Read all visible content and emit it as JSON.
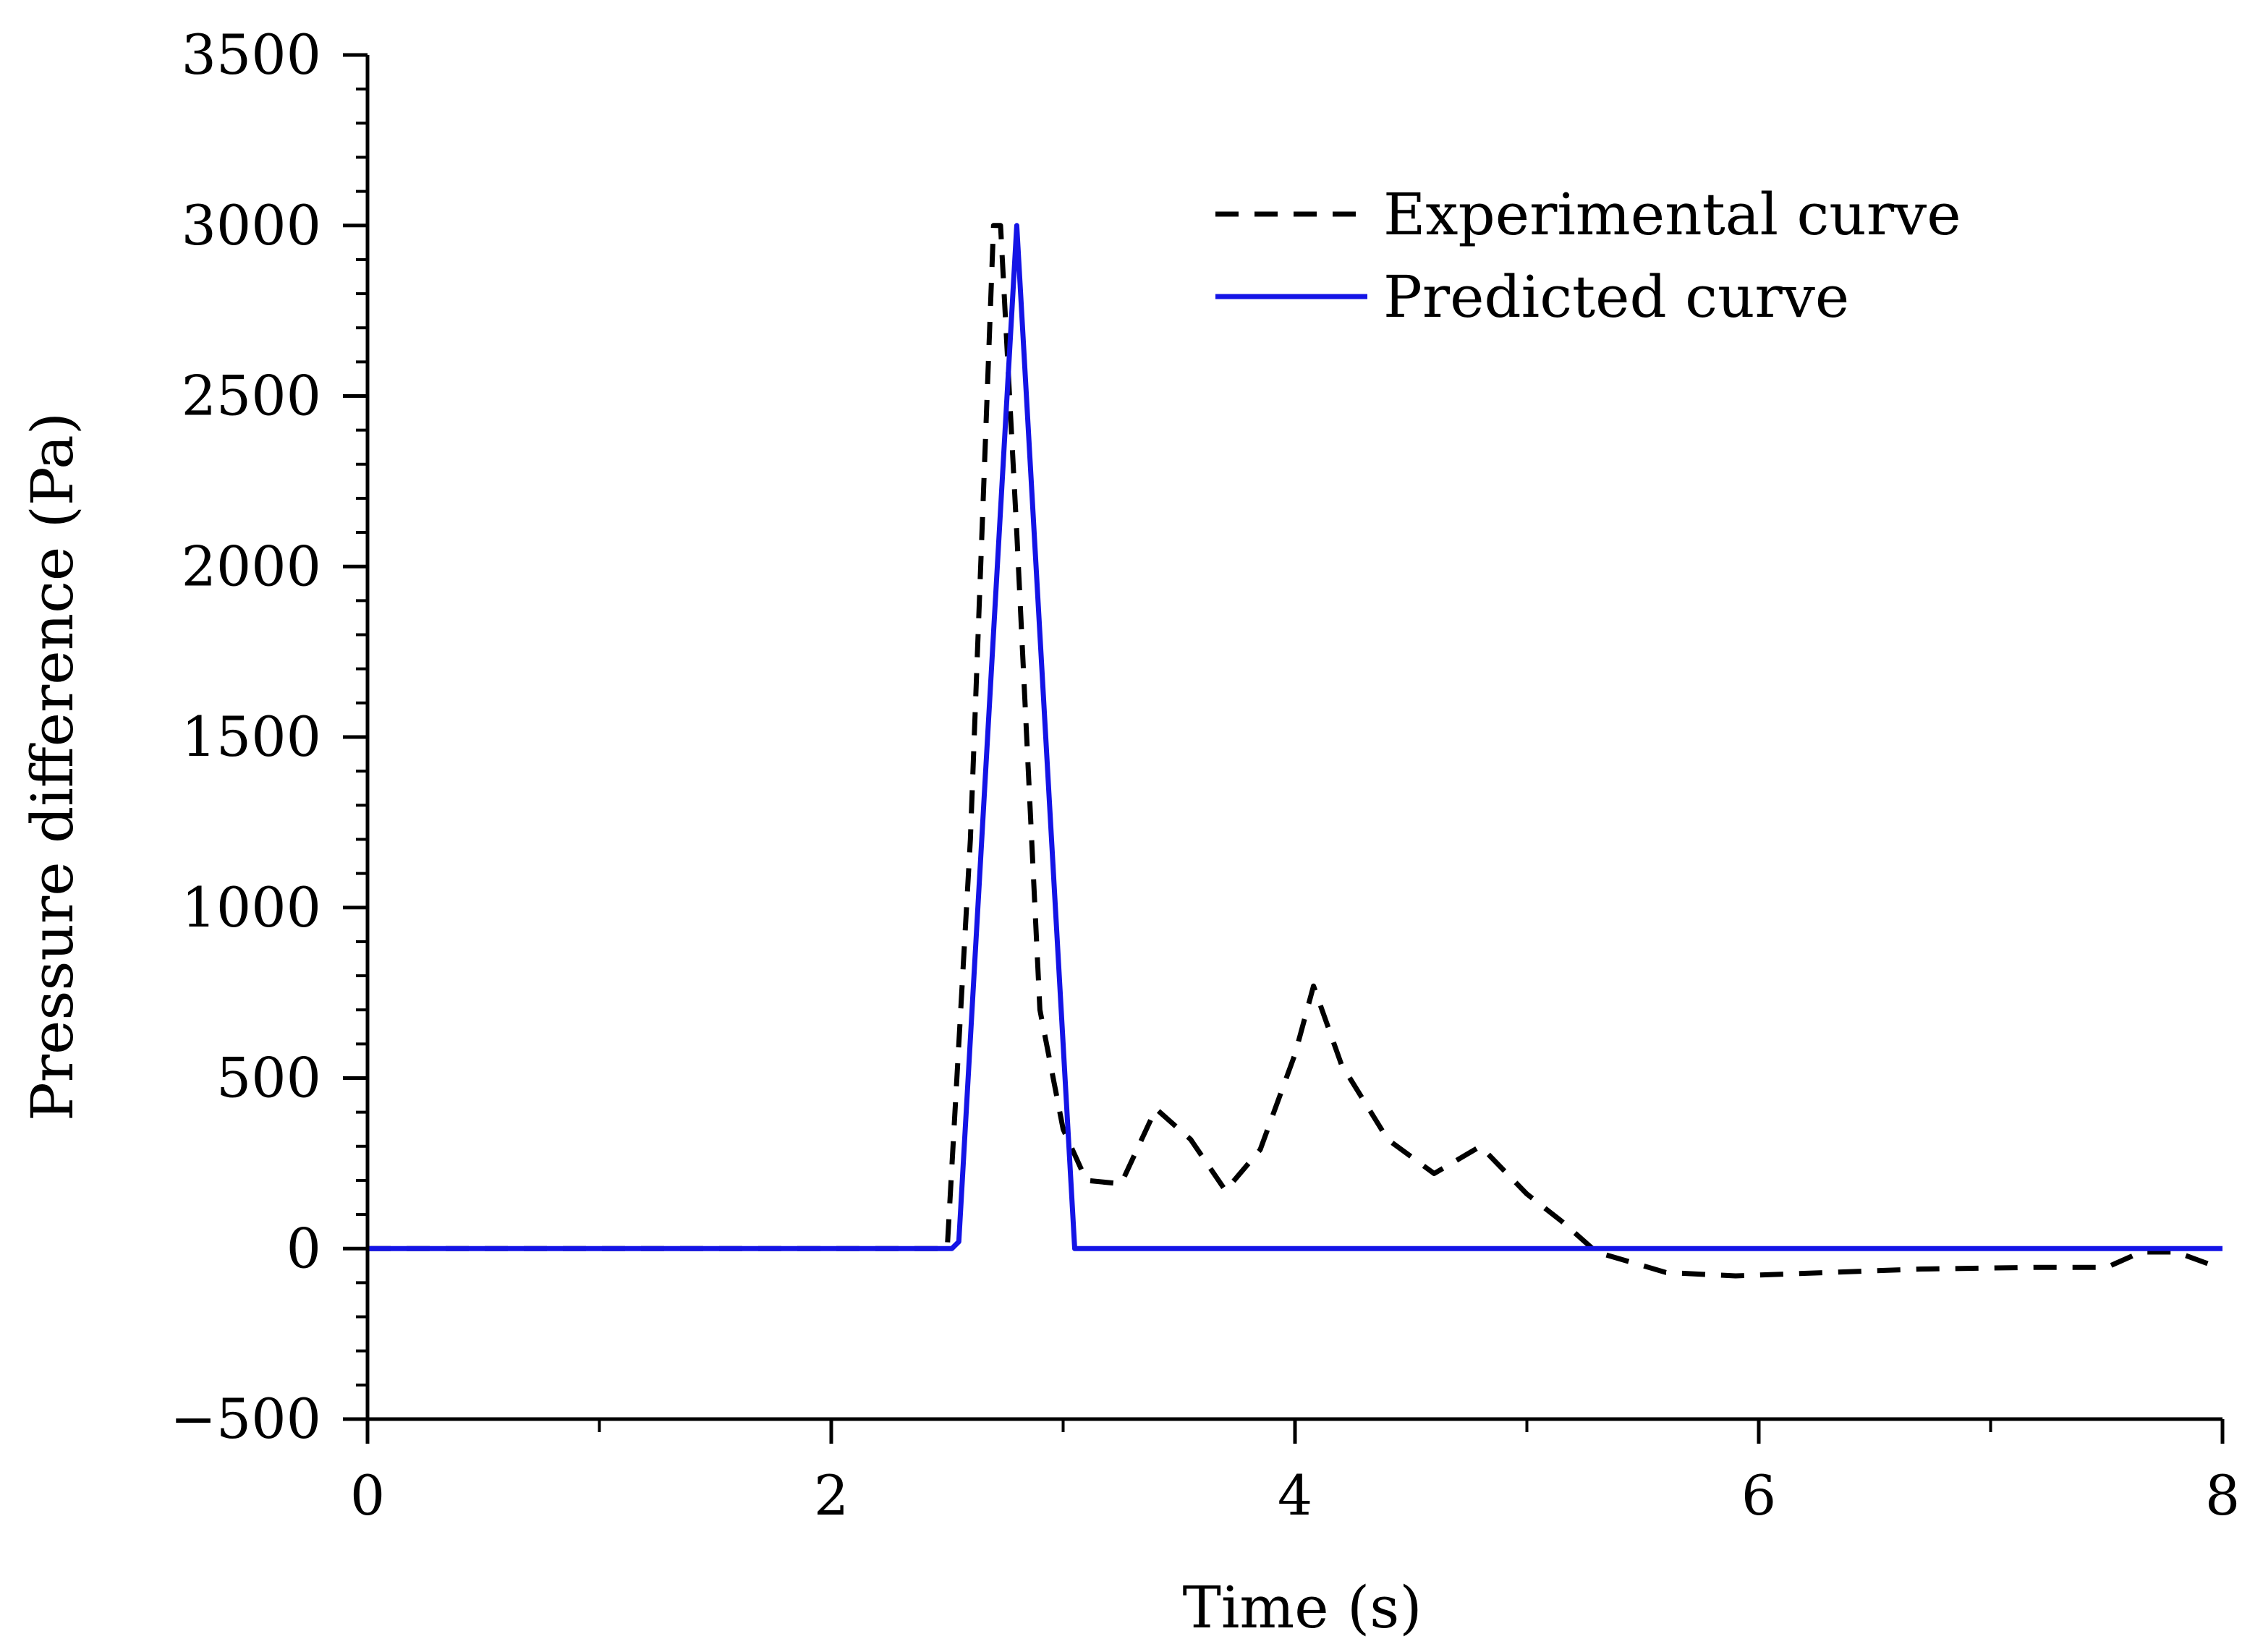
{
  "chart_data": {
    "type": "line",
    "title": "",
    "xlabel": "Time (s)",
    "ylabel": "Pressure difference (Pa)",
    "xlim": [
      0,
      8
    ],
    "ylim": [
      -500,
      3500
    ],
    "xticks": [
      0,
      2,
      4,
      6,
      8
    ],
    "xtick_labels": [
      "0",
      "2",
      "4",
      "6",
      "8"
    ],
    "yticks": [
      -500,
      0,
      500,
      1000,
      1500,
      2000,
      2500,
      3000,
      3500
    ],
    "ytick_labels": [
      "−500",
      "0",
      "500",
      "1000",
      "1500",
      "2000",
      "2500",
      "3000",
      "3500"
    ],
    "grid": false,
    "legend": "top-right",
    "series": [
      {
        "name": "Experimental curve",
        "style": "dashed",
        "color": "#000000",
        "x": [
          0,
          1,
          2,
          2.5,
          2.6,
          2.7,
          2.73,
          2.8,
          2.9,
          3.0,
          3.1,
          3.25,
          3.4,
          3.55,
          3.7,
          3.85,
          4.0,
          4.08,
          4.2,
          4.4,
          4.6,
          4.8,
          5.0,
          5.15,
          5.3,
          5.6,
          5.9,
          6.3,
          6.7,
          7.2,
          7.5,
          7.65,
          7.8,
          8.0
        ],
        "y": [
          0,
          0,
          0,
          0,
          1200,
          3000,
          3000,
          2100,
          700,
          350,
          200,
          190,
          410,
          320,
          170,
          290,
          570,
          770,
          540,
          320,
          220,
          300,
          160,
          80,
          -10,
          -70,
          -80,
          -70,
          -60,
          -55,
          -55,
          -10,
          -10,
          -60
        ]
      },
      {
        "name": "Predicted curve",
        "style": "solid",
        "color": "#1414e6",
        "x": [
          0,
          2.52,
          2.55,
          2.8,
          3.05,
          8.0
        ],
        "y": [
          0,
          0,
          20,
          3000,
          0,
          0
        ]
      }
    ]
  }
}
